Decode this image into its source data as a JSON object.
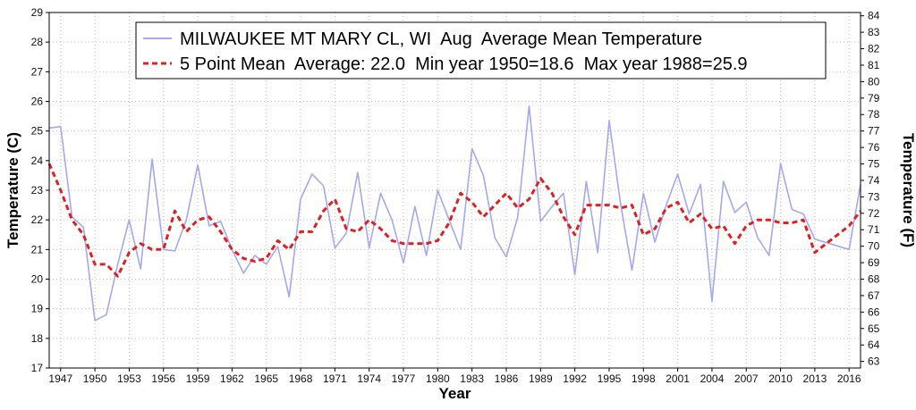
{
  "chart_data": {
    "type": "line",
    "title": "",
    "xlabel": "Year",
    "ylabel_left": "Temperature (C)",
    "ylabel_right": "Temperature (F)",
    "xlim": [
      1946,
      2017
    ],
    "ylim_left": [
      17,
      29
    ],
    "ylim_right": [
      62.6,
      84.2
    ],
    "x_ticks": [
      1947,
      1950,
      1953,
      1956,
      1959,
      1962,
      1965,
      1968,
      1971,
      1974,
      1977,
      1980,
      1983,
      1986,
      1989,
      1992,
      1995,
      1998,
      2001,
      2004,
      2007,
      2010,
      2013,
      2016
    ],
    "y_ticks_left": [
      17,
      18,
      19,
      20,
      21,
      22,
      23,
      24,
      25,
      26,
      27,
      28,
      29
    ],
    "y_ticks_right": [
      63,
      64,
      65,
      66,
      67,
      68,
      69,
      70,
      71,
      72,
      73,
      74,
      75,
      76,
      77,
      78,
      79,
      80,
      81,
      82,
      83,
      84
    ],
    "grid": true,
    "legend_position": "top-right",
    "series": [
      {
        "name": "MILWAUKEE MT MARY CL, WI  Aug  Average Mean Temperature",
        "color": "#a4a8f0",
        "style": "solid",
        "x": [
          1946,
          1947,
          1948,
          1949,
          1950,
          1951,
          1952,
          1953,
          1954,
          1955,
          1956,
          1957,
          1958,
          1959,
          1960,
          1961,
          1962,
          1963,
          1964,
          1965,
          1966,
          1967,
          1968,
          1969,
          1970,
          1971,
          1972,
          1973,
          1974,
          1975,
          1976,
          1977,
          1978,
          1979,
          1980,
          1981,
          1982,
          1983,
          1984,
          1985,
          1986,
          1987,
          1988,
          1989,
          1990,
          1991,
          1992,
          1993,
          1994,
          1995,
          1996,
          1997,
          1998,
          1999,
          2000,
          2001,
          2002,
          2003,
          2004,
          2005,
          2006,
          2007,
          2008,
          2009,
          2010,
          2011,
          2012,
          2013,
          2016,
          2017
        ],
        "y": [
          25.1,
          25.15,
          22.1,
          21.75,
          18.6,
          18.8,
          20.5,
          22.0,
          20.35,
          24.05,
          21.0,
          20.95,
          22.0,
          23.85,
          21.8,
          21.95,
          21.0,
          20.2,
          20.8,
          20.5,
          21.1,
          19.4,
          22.7,
          23.55,
          23.15,
          21.05,
          21.55,
          23.6,
          21.05,
          22.9,
          22.0,
          20.55,
          22.45,
          20.8,
          23.0,
          22.0,
          21.0,
          24.4,
          23.5,
          21.4,
          20.75,
          22.1,
          25.85,
          21.95,
          22.45,
          22.9,
          20.15,
          23.3,
          20.9,
          25.35,
          22.55,
          20.3,
          22.9,
          21.25,
          22.5,
          23.55,
          22.2,
          23.2,
          19.25,
          23.3,
          22.25,
          22.6,
          21.4,
          20.8,
          23.9,
          22.35,
          22.2,
          21.35,
          21.0,
          23.2
        ]
      },
      {
        "name": "5 Point Mean  Average: 22.0  Min year 1950=18.6  Max year 1988=25.9",
        "color": "#e02020",
        "style": "dashed",
        "x": [
          1946,
          1947,
          1948,
          1949,
          1950,
          1951,
          1952,
          1953,
          1954,
          1955,
          1956,
          1957,
          1958,
          1959,
          1960,
          1961,
          1962,
          1963,
          1964,
          1965,
          1966,
          1967,
          1968,
          1969,
          1970,
          1971,
          1972,
          1973,
          1974,
          1975,
          1976,
          1977,
          1978,
          1979,
          1980,
          1981,
          1982,
          1983,
          1984,
          1985,
          1986,
          1987,
          1988,
          1989,
          1990,
          1991,
          1992,
          1993,
          1994,
          1995,
          1996,
          1997,
          1998,
          1999,
          2000,
          2001,
          2002,
          2003,
          2004,
          2005,
          2006,
          2007,
          2008,
          2009,
          2010,
          2011,
          2012,
          2013,
          2016,
          2017
        ],
        "y": [
          23.9,
          23.0,
          22.0,
          21.5,
          20.5,
          20.5,
          20.1,
          20.9,
          21.2,
          21.0,
          21.0,
          22.3,
          21.6,
          22.0,
          22.1,
          21.6,
          21.0,
          20.7,
          20.6,
          20.7,
          21.3,
          21.0,
          21.6,
          21.6,
          22.3,
          22.7,
          21.7,
          21.6,
          22.0,
          21.7,
          21.3,
          21.2,
          21.2,
          21.2,
          21.3,
          21.9,
          22.9,
          22.6,
          22.1,
          22.5,
          22.9,
          22.4,
          22.7,
          23.4,
          22.9,
          22.1,
          21.5,
          22.5,
          22.5,
          22.5,
          22.4,
          22.5,
          21.5,
          21.7,
          22.4,
          22.6,
          21.9,
          22.2,
          21.7,
          21.8,
          21.2,
          21.8,
          22.0,
          22.0,
          21.9,
          21.9,
          22.0,
          20.9,
          21.8,
          22.3
        ]
      }
    ]
  }
}
